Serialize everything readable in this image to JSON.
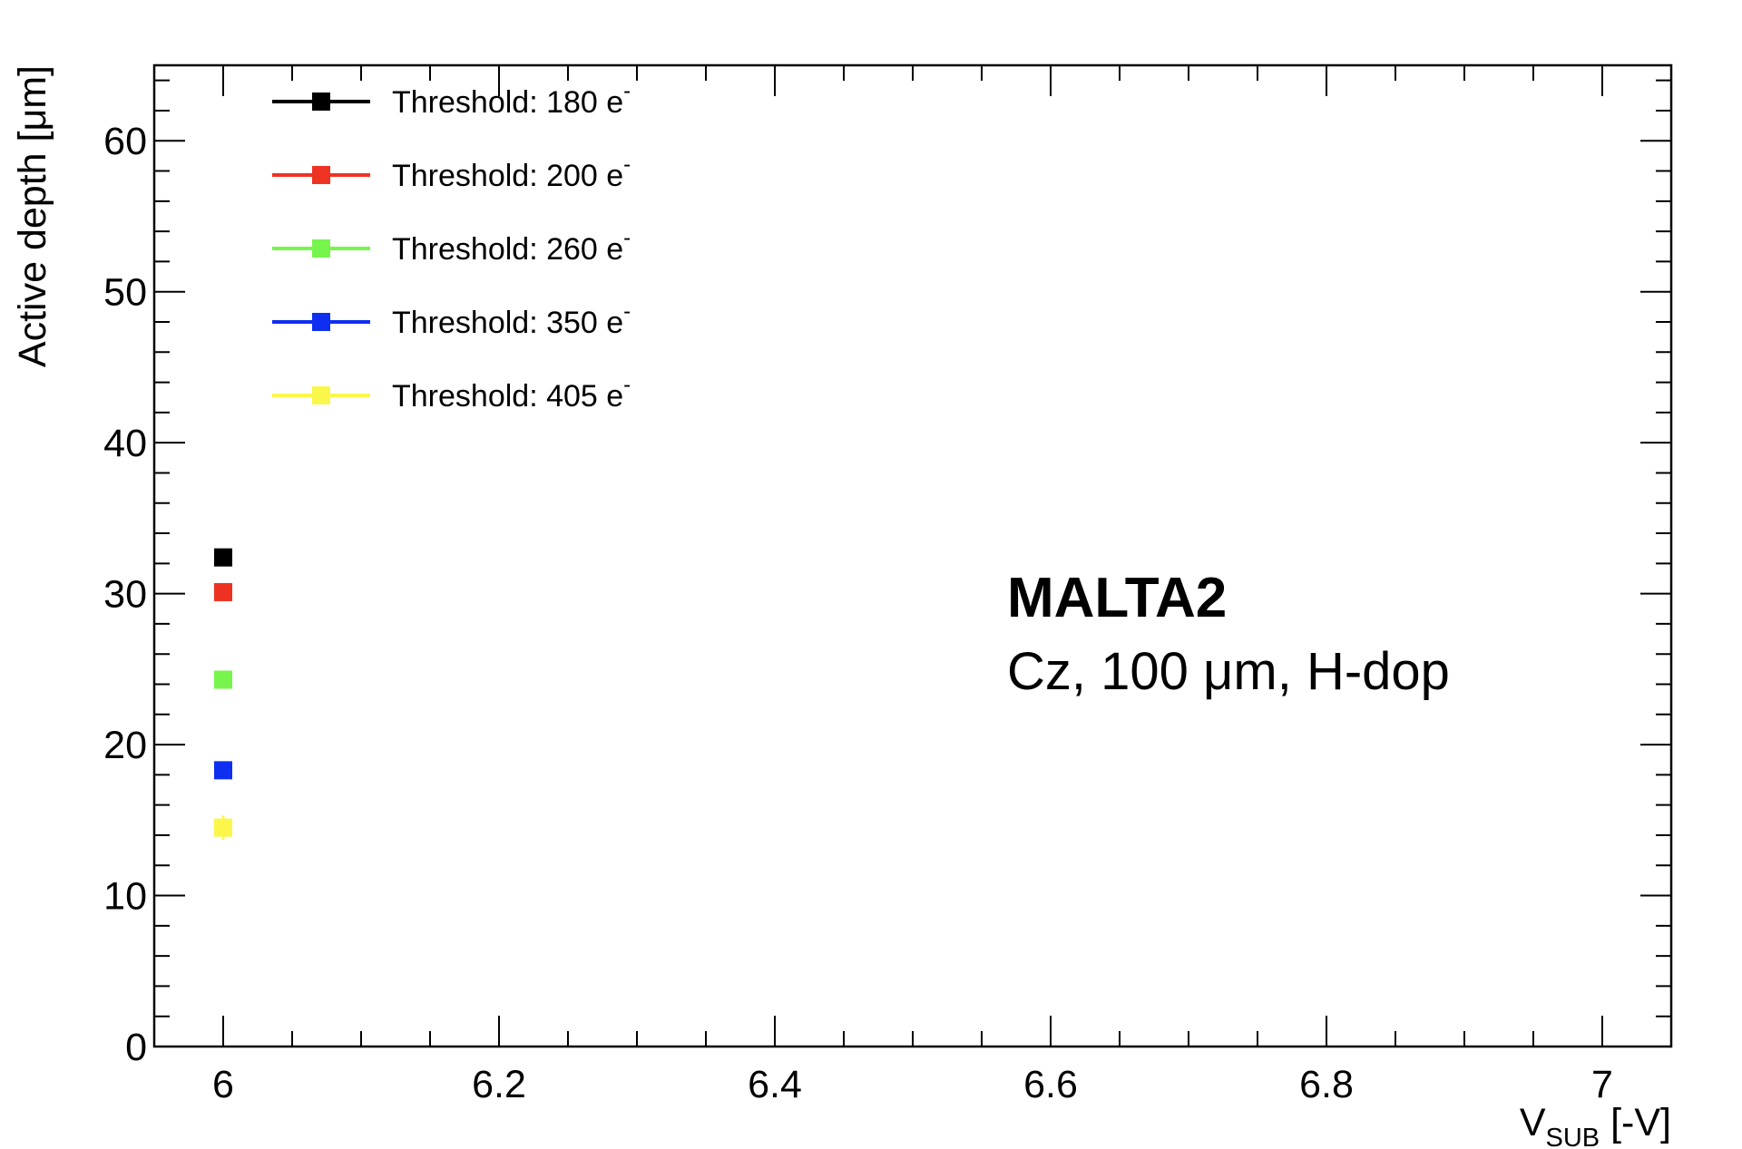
{
  "chart_data": {
    "type": "scatter",
    "title": "",
    "xlabel": {
      "main": "V",
      "sub": "SUB",
      "suffix": " [-V]"
    },
    "ylabel": "Active depth [μm]",
    "xlim": [
      5.95,
      7.05
    ],
    "ylim": [
      0,
      65
    ],
    "x_ticks": [
      6,
      6.2,
      6.4,
      6.6,
      6.8,
      7
    ],
    "x_tick_labels": [
      "6",
      "6.2",
      "6.4",
      "6.6",
      "6.8",
      "7"
    ],
    "y_ticks": [
      0,
      10,
      20,
      30,
      40,
      50,
      60
    ],
    "y_tick_labels": [
      "0",
      "10",
      "20",
      "30",
      "40",
      "50",
      "60"
    ],
    "grid": false,
    "legend_position": "top-left",
    "series": [
      {
        "name": "Threshold: 180 e",
        "name_sup": "-",
        "color": "#000000",
        "x": [
          6
        ],
        "y": [
          32.4
        ],
        "yerr": [
          0.4
        ]
      },
      {
        "name": "Threshold: 200 e",
        "name_sup": "-",
        "color": "#ee3323",
        "x": [
          6
        ],
        "y": [
          30.1
        ],
        "yerr": [
          0.4
        ]
      },
      {
        "name": "Threshold: 260 e",
        "name_sup": "-",
        "color": "#77f54d",
        "x": [
          6
        ],
        "y": [
          24.3
        ],
        "yerr": [
          0.5
        ]
      },
      {
        "name": "Threshold: 350 e",
        "name_sup": "-",
        "color": "#0f2ff0",
        "x": [
          6
        ],
        "y": [
          18.3
        ],
        "yerr": [
          0.5
        ]
      },
      {
        "name": "Threshold: 405 e",
        "name_sup": "-",
        "color": "#fbf74a",
        "x": [
          6
        ],
        "y": [
          14.5
        ],
        "yerr": [
          0.8
        ]
      }
    ],
    "annotations": {
      "line1": "MALTA2",
      "line2": "Cz, 100 μm, H-dop"
    }
  }
}
